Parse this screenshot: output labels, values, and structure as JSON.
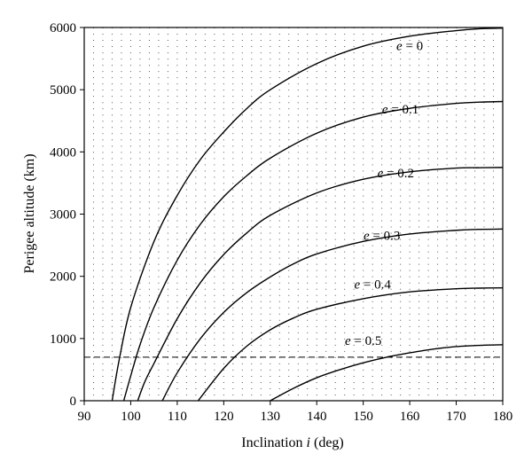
{
  "chart_data": {
    "type": "line",
    "xlabel": "Inclination",
    "xlabel_var": "i",
    "xlabel_unit": "(deg)",
    "ylabel": "Perigee altitude (km)",
    "xlim": [
      90,
      180
    ],
    "ylim": [
      0,
      6000
    ],
    "xticks": [
      90,
      100,
      110,
      120,
      130,
      140,
      150,
      160,
      170,
      180
    ],
    "yticks": [
      0,
      1000,
      2000,
      3000,
      4000,
      5000,
      6000
    ],
    "grid": "dotted",
    "series": [
      {
        "name": "e = 0",
        "e_label": "e",
        "e_value": "= 0",
        "x": [
          96.0,
          97.5,
          100,
          105,
          110,
          115,
          120,
          125,
          130,
          140,
          150,
          160,
          170,
          175,
          180
        ],
        "y": [
          0,
          650,
          1500,
          2560,
          3300,
          3880,
          4320,
          4700,
          5000,
          5420,
          5700,
          5860,
          5950,
          5980,
          5990
        ]
      },
      {
        "name": "e = 0.1",
        "e_label": "e",
        "e_value": "= 0.1",
        "x": [
          98.5,
          100,
          102,
          105,
          110,
          115,
          120,
          125,
          130,
          140,
          150,
          160,
          170,
          175,
          180
        ],
        "y": [
          0,
          400,
          900,
          1500,
          2260,
          2840,
          3280,
          3620,
          3900,
          4300,
          4560,
          4700,
          4780,
          4800,
          4810
        ]
      },
      {
        "name": "e = 0.2",
        "e_label": "e",
        "e_value": "= 0.2",
        "x": [
          101.5,
          103,
          105,
          110,
          115,
          120,
          125,
          130,
          140,
          150,
          160,
          170,
          175,
          180
        ],
        "y": [
          0,
          300,
          600,
          1320,
          1900,
          2350,
          2700,
          2980,
          3340,
          3560,
          3680,
          3740,
          3745,
          3750
        ]
      },
      {
        "name": "e = 0.3",
        "e_label": "e",
        "e_value": "= 0.3",
        "x": [
          106.8,
          110,
          115,
          120,
          125,
          130,
          135,
          140,
          150,
          160,
          170,
          175,
          180
        ],
        "y": [
          0,
          450,
          1000,
          1420,
          1740,
          1990,
          2200,
          2360,
          2560,
          2680,
          2740,
          2755,
          2760
        ]
      },
      {
        "name": "e = 0.4",
        "e_label": "e",
        "e_value": "= 0.4",
        "x": [
          114.5,
          120,
          125,
          130,
          135,
          140,
          150,
          160,
          170,
          175,
          180
        ],
        "y": [
          0,
          520,
          880,
          1140,
          1330,
          1470,
          1640,
          1750,
          1800,
          1810,
          1815
        ]
      },
      {
        "name": "e = 0.5",
        "e_label": "e",
        "e_value": "= 0.5",
        "x": [
          130,
          135,
          140,
          145,
          150,
          155,
          160,
          165,
          170,
          175,
          180
        ],
        "y": [
          0,
          200,
          370,
          500,
          610,
          700,
          770,
          830,
          870,
          890,
          900
        ]
      }
    ],
    "reference_line": {
      "y": 700,
      "style": "dashed"
    }
  }
}
